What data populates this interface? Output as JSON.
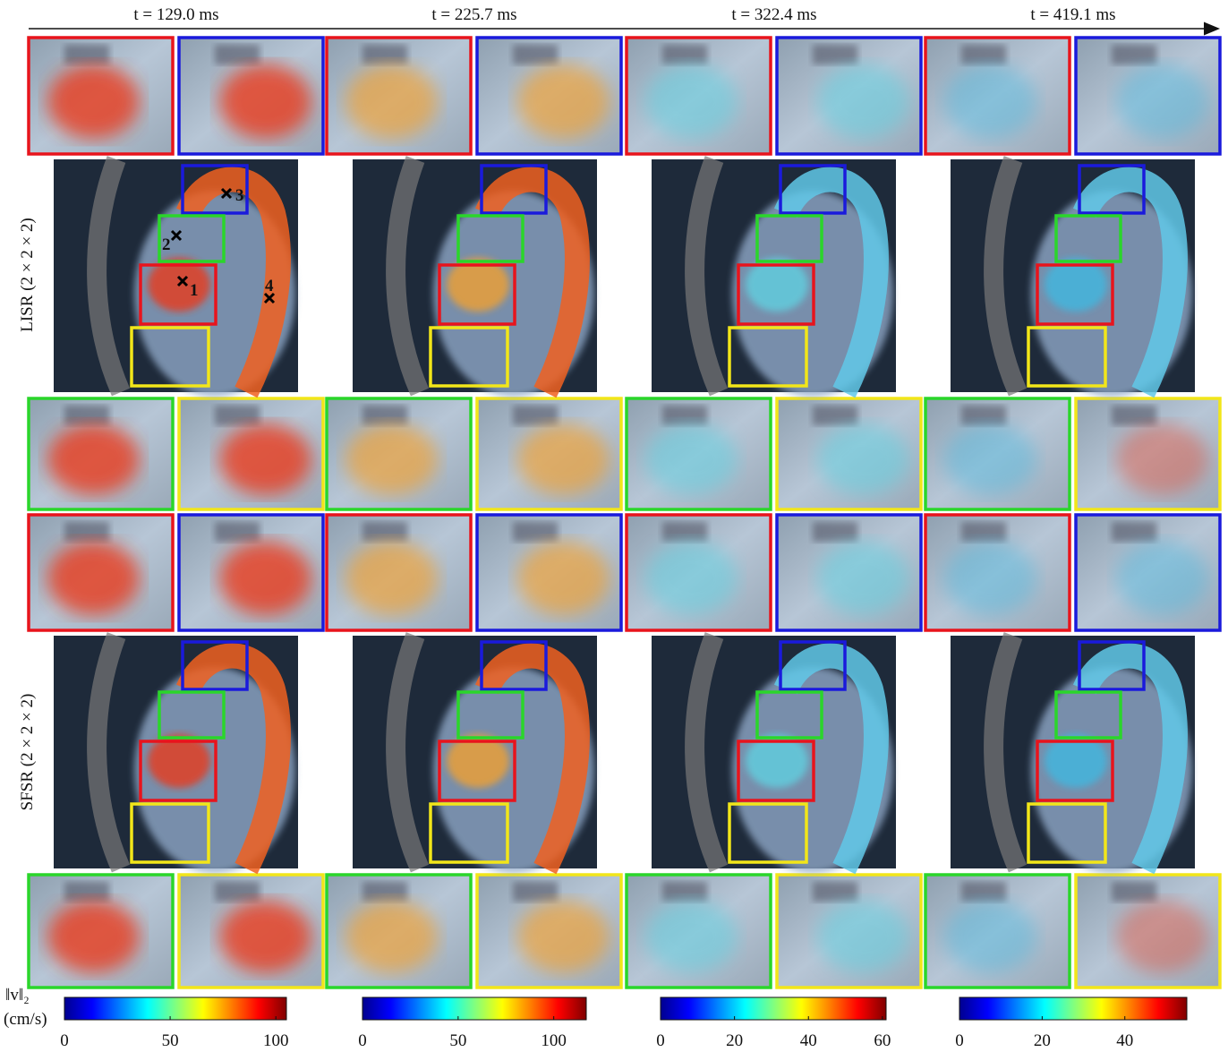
{
  "header": {
    "time_labels": [
      "t = 129.0 ms",
      "t = 225.7 ms",
      "t = 322.4 ms",
      "t = 419.1 ms"
    ]
  },
  "rows": [
    "LISR (2 × 2 × 2)",
    "SFSR (2 × 2 × 2)"
  ],
  "markers": [
    "1",
    "2",
    "3",
    "4"
  ],
  "colorbar": {
    "label": "‖v‖₂",
    "unit": "(cm/s)",
    "scales": [
      {
        "lim": [
          0,
          105
        ],
        "ticks": [
          0,
          50,
          100
        ]
      },
      {
        "lim": [
          0,
          117
        ],
        "ticks": [
          0,
          50,
          100
        ]
      },
      {
        "lim": [
          0,
          61
        ],
        "ticks": [
          0,
          20,
          40,
          60
        ]
      },
      {
        "lim": [
          0,
          55
        ],
        "ticks": [
          0,
          20,
          40
        ]
      }
    ]
  }
}
